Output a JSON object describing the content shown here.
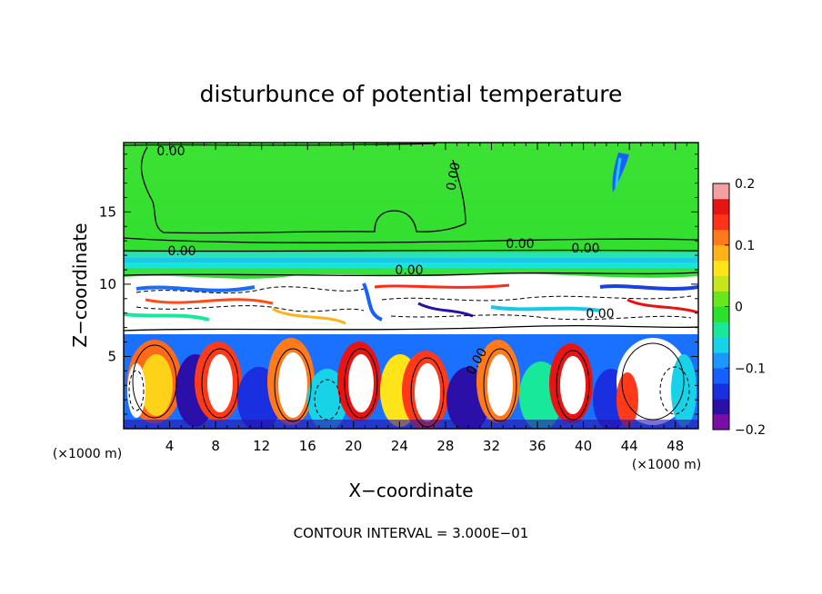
{
  "chart_data": {
    "type": "heatmap",
    "title": "disturbunce of potential temperature",
    "xlabel": "X−coordinate",
    "ylabel": "Z−coordinate",
    "x_unit": "(×1000 m)",
    "y_unit": "(×1000 m)",
    "xlim": [
      0,
      50
    ],
    "ylim": [
      0,
      19.8
    ],
    "x_ticks": [
      "4",
      "8",
      "12",
      "16",
      "20",
      "24",
      "28",
      "32",
      "36",
      "40",
      "44",
      "48"
    ],
    "y_ticks": [
      "5",
      "10",
      "15"
    ],
    "footer": "CONTOUR INTERVAL = 3.000E−01",
    "contour_labels": [
      "0.00",
      "0.00",
      "0.00",
      "0.00",
      "0.00",
      "0.00",
      "0.00",
      "0.00"
    ],
    "colorbar": {
      "range": [
        -0.2,
        0.2
      ],
      "tick_labels": [
        "0.2",
        "0.1",
        "0",
        "−0.1",
        "−0.2"
      ],
      "tick_values": [
        0.2,
        0.1,
        0,
        -0.1,
        -0.2
      ],
      "colors": [
        "#7a0fa8",
        "#2a10a8",
        "#1a30e0",
        "#1560ff",
        "#1a98ff",
        "#18d2e8",
        "#18e89a",
        "#2ce02c",
        "#66e81a",
        "#c8e41a",
        "#ffe41a",
        "#ffb21a",
        "#ff7a1a",
        "#ff321a",
        "#e81414",
        "#f4a0a0"
      ]
    }
  }
}
